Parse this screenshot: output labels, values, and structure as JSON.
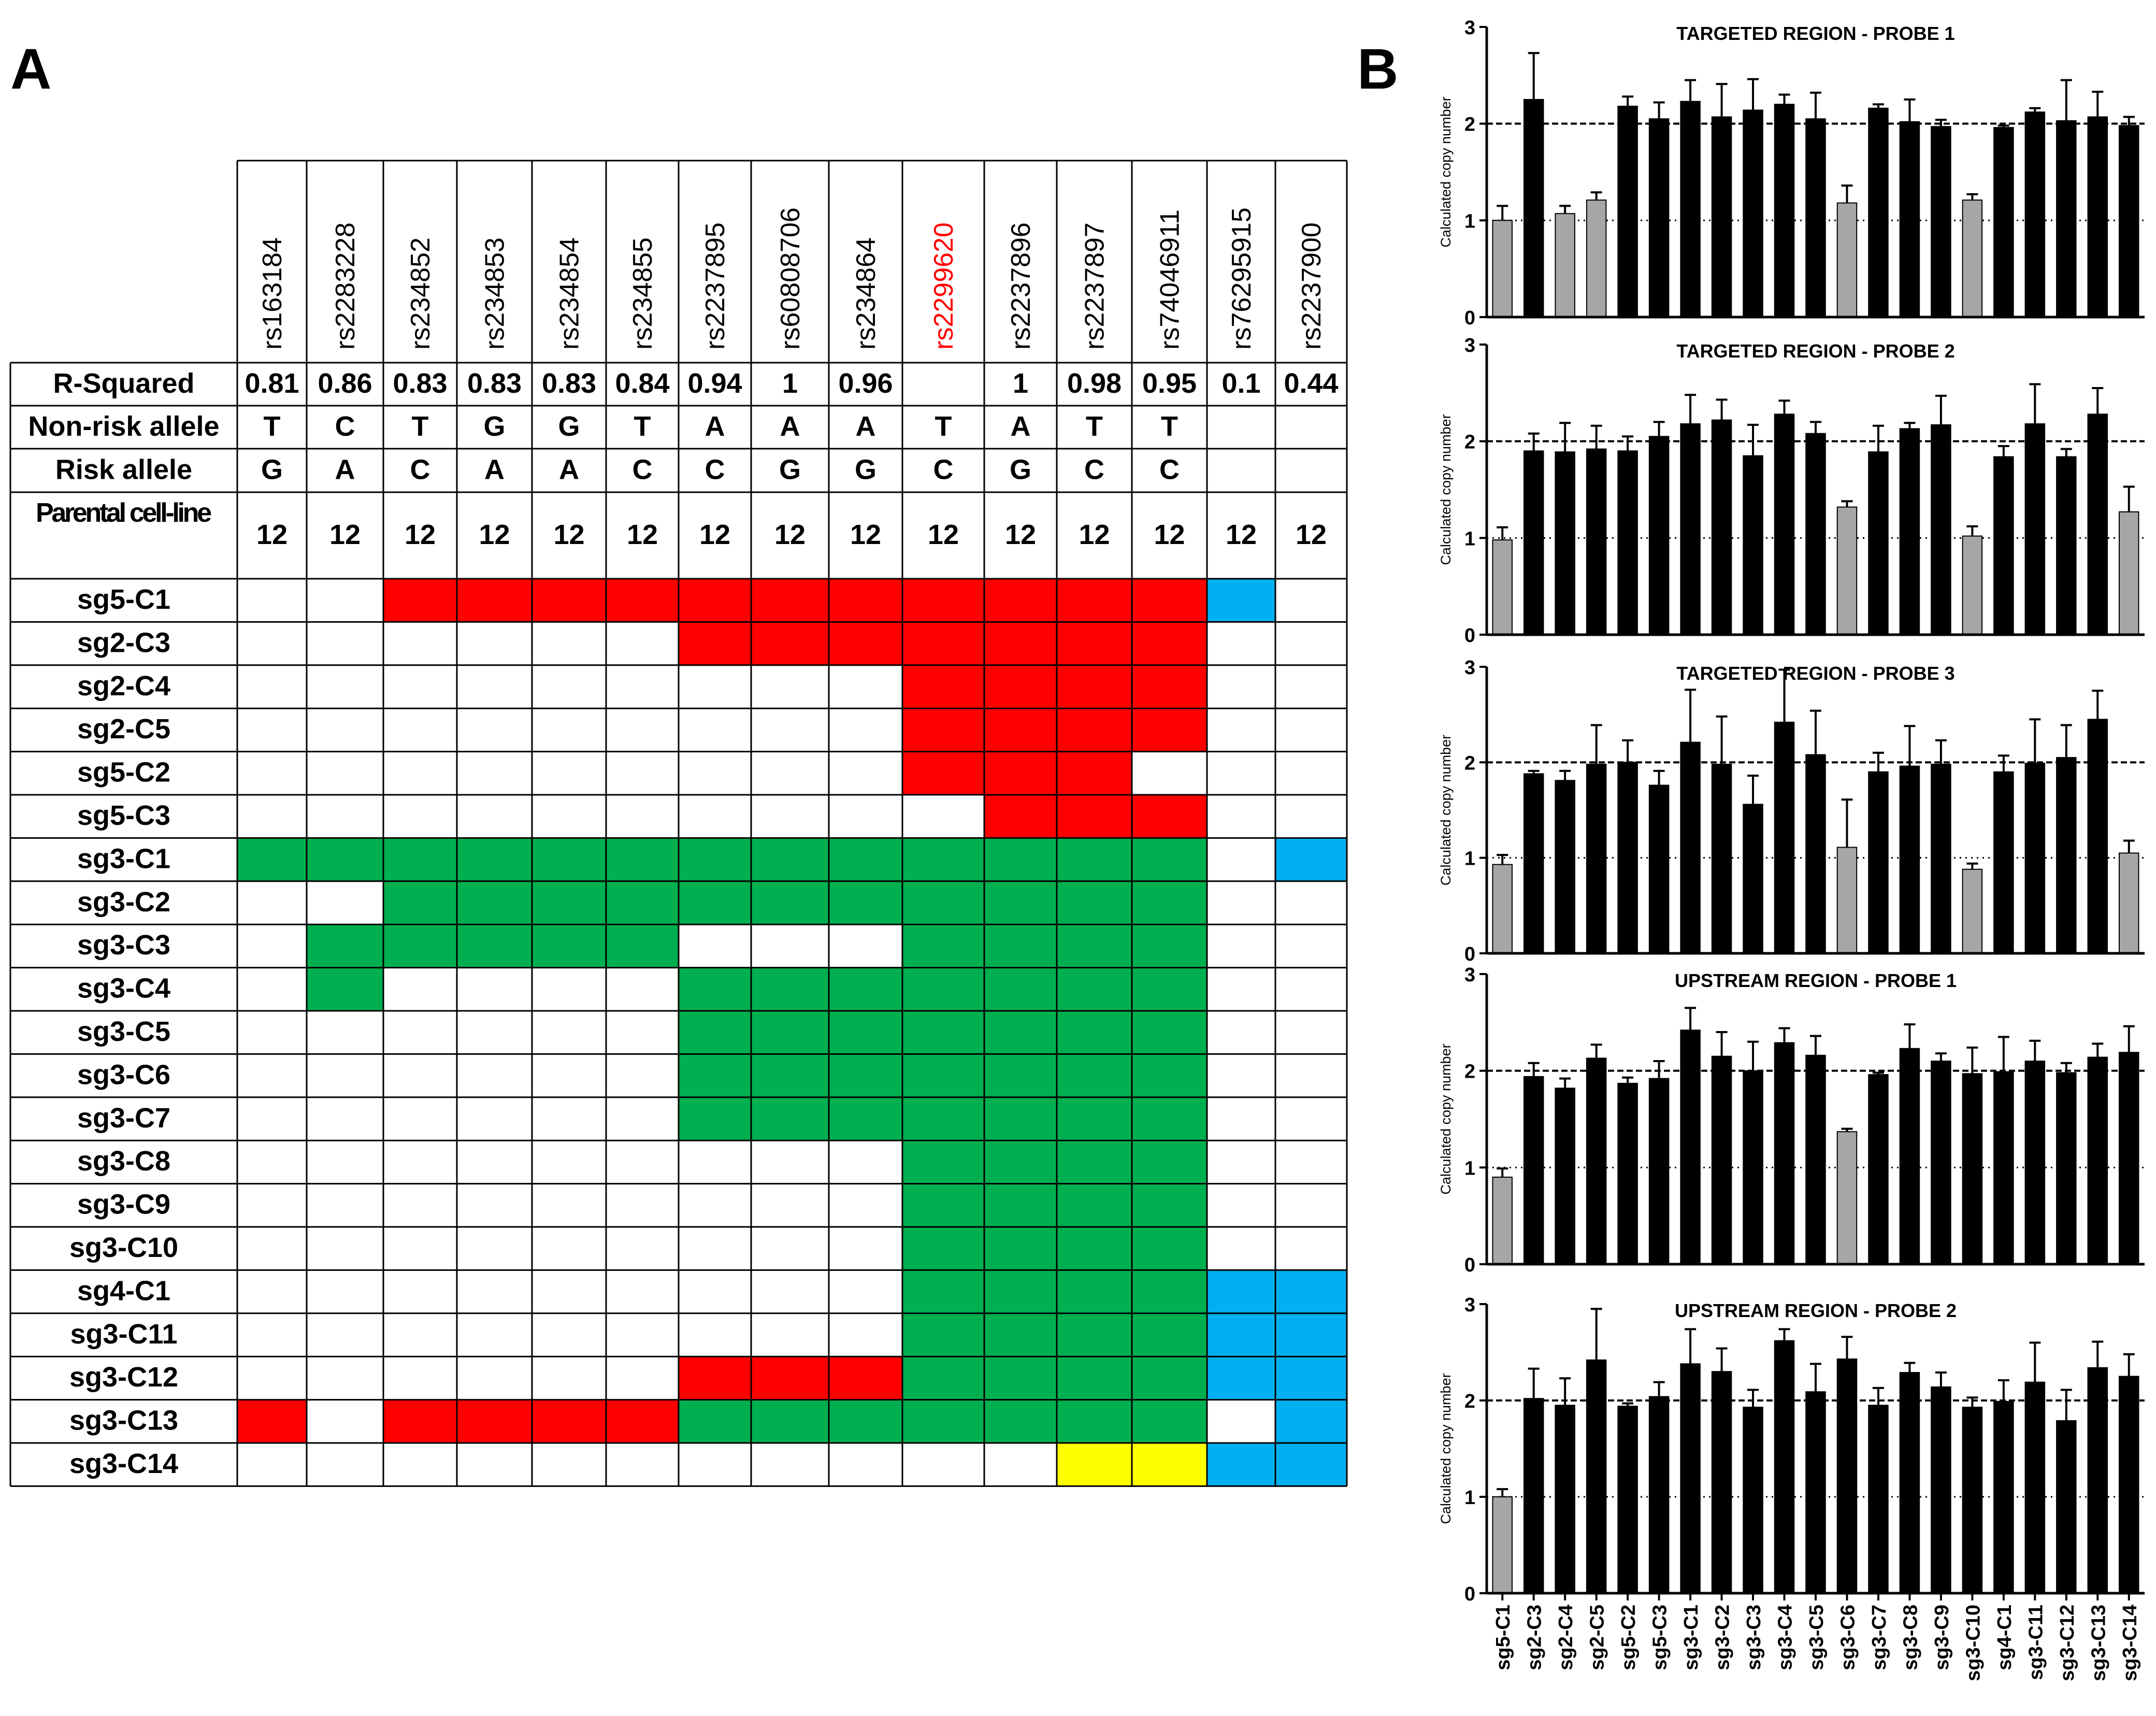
{
  "panels": {
    "a": "A",
    "b": "B"
  },
  "table": {
    "snps": [
      "rs163184",
      "rs2283228",
      "rs234852",
      "rs234853",
      "rs234854",
      "rs234855",
      "rs2237895",
      "rs60808706",
      "rs234864",
      "rs2299620",
      "rs2237896",
      "rs2237897",
      "rs74046911",
      "rs76295915",
      "rs2237900"
    ],
    "highlight_snp": "rs2299620",
    "highlight_color": "#ff0000",
    "info_rows": [
      {
        "label": "R-Squared",
        "values": [
          "0.81",
          "0.86",
          "0.83",
          "0.83",
          "0.83",
          "0.84",
          "0.94",
          "1",
          "0.96",
          "",
          "1",
          "0.98",
          "0.95",
          "0.1",
          "0.44"
        ]
      },
      {
        "label": "Non-risk allele",
        "values": [
          "T",
          "C",
          "T",
          "G",
          "G",
          "T",
          "A",
          "A",
          "A",
          "T",
          "A",
          "T",
          "T",
          "",
          ""
        ]
      },
      {
        "label": "Risk allele",
        "values": [
          "G",
          "A",
          "C",
          "A",
          "A",
          "C",
          "C",
          "G",
          "G",
          "C",
          "G",
          "C",
          "C",
          "",
          ""
        ]
      },
      {
        "label": "Parental cell-line",
        "values": [
          "12",
          "12",
          "12",
          "12",
          "12",
          "12",
          "12",
          "12",
          "12",
          "12",
          "12",
          "12",
          "12",
          "12",
          "12"
        ]
      }
    ],
    "color_key": {
      "R": "#ff0000",
      "G": "#00b050",
      "B": "#00b0f0",
      "Y": "#ffff00",
      "W": "#ffffff"
    },
    "clones": [
      {
        "label": "sg5-C1",
        "cells": "WWRRRRRRRRRRRBW"
      },
      {
        "label": "sg2-C3",
        "cells": "WWWWWWRRRRRRRWW"
      },
      {
        "label": "sg2-C4",
        "cells": "WWWWWWWWWRRRRWW"
      },
      {
        "label": "sg2-C5",
        "cells": "WWWWWWWWWRRRRWW"
      },
      {
        "label": "sg5-C2",
        "cells": "WWWWWWWWWRRRWWW"
      },
      {
        "label": "sg5-C3",
        "cells": "WWWWWWWWWWRRRWW"
      },
      {
        "label": "sg3-C1",
        "cells": "GGGGGGGGGGGGGWB"
      },
      {
        "label": "sg3-C2",
        "cells": "WWGGGGGGGGGGGWW"
      },
      {
        "label": "sg3-C3",
        "cells": "WGGGGGWWWGGGGWW"
      },
      {
        "label": "sg3-C4",
        "cells": "WGWWWWGGGGGGGWW"
      },
      {
        "label": "sg3-C5",
        "cells": "WWWWWWGGGGGGGWW"
      },
      {
        "label": "sg3-C6",
        "cells": "WWWWWWGGGGGGGWW"
      },
      {
        "label": "sg3-C7",
        "cells": "WWWWWWGGGGGGGWW"
      },
      {
        "label": "sg3-C8",
        "cells": "WWWWWWWWWGGGGWW"
      },
      {
        "label": "sg3-C9",
        "cells": "WWWWWWWWWGGGGWW"
      },
      {
        "label": "sg3-C10",
        "cells": "WWWWWWWWWGGGGWW"
      },
      {
        "label": "sg4-C1",
        "cells": "WWWWWWWWWGGGGBB"
      },
      {
        "label": "sg3-C11",
        "cells": "WWWWWWWWWGGGGBB"
      },
      {
        "label": "sg3-C12",
        "cells": "WWWWWWRRRGGGGBB"
      },
      {
        "label": "sg3-C13",
        "cells": "RWRRRRGGGGGGGWB"
      },
      {
        "label": "sg3-C14",
        "cells": "WWWWWWWWWWWYYBB"
      }
    ]
  },
  "chart_data": [
    {
      "type": "bar",
      "title": "TARGETED REGION - PROBE 1",
      "ylabel": "Calculated copy number",
      "ylim": [
        0,
        3
      ],
      "yticks": [
        0,
        1,
        2,
        3
      ],
      "reference_lines": [
        {
          "y": 1,
          "style": "dotted"
        },
        {
          "y": 2,
          "style": "dashed"
        }
      ],
      "categories": [
        "sg5-C1",
        "sg2-C3",
        "sg2-C4",
        "sg2-C5",
        "sg5-C2",
        "sg5-C3",
        "sg3-C1",
        "sg3-C2",
        "sg3-C3",
        "sg3-C4",
        "sg3-C5",
        "sg3-C6",
        "sg3-C7",
        "sg3-C8",
        "sg3-C9",
        "sg3-C10",
        "sg4-C1",
        "sg3-C11",
        "sg3-C12",
        "sg3-C13",
        "sg3-C14"
      ],
      "values": [
        1.0,
        2.25,
        1.07,
        1.21,
        2.18,
        2.05,
        2.23,
        2.07,
        2.14,
        2.2,
        2.05,
        1.18,
        2.16,
        2.02,
        1.97,
        1.21,
        1.96,
        2.12,
        2.03,
        2.07,
        1.98
      ],
      "errors": [
        0.15,
        0.48,
        0.08,
        0.08,
        0.1,
        0.17,
        0.22,
        0.34,
        0.32,
        0.1,
        0.27,
        0.18,
        0.04,
        0.23,
        0.07,
        0.06,
        0.02,
        0.04,
        0.42,
        0.26,
        0.09
      ],
      "colors": [
        "#a6a6a6",
        "#000000",
        "#a6a6a6",
        "#a6a6a6",
        "#000000",
        "#000000",
        "#000000",
        "#000000",
        "#000000",
        "#000000",
        "#000000",
        "#a6a6a6",
        "#000000",
        "#000000",
        "#000000",
        "#a6a6a6",
        "#000000",
        "#000000",
        "#000000",
        "#000000",
        "#000000"
      ]
    },
    {
      "type": "bar",
      "title": "TARGETED REGION - PROBE 2",
      "ylabel": "Calculated copy number",
      "ylim": [
        0,
        3
      ],
      "yticks": [
        0,
        1,
        2,
        3
      ],
      "reference_lines": [
        {
          "y": 1,
          "style": "dotted"
        },
        {
          "y": 2,
          "style": "dashed"
        }
      ],
      "categories": [
        "sg5-C1",
        "sg2-C3",
        "sg2-C4",
        "sg2-C5",
        "sg5-C2",
        "sg5-C3",
        "sg3-C1",
        "sg3-C2",
        "sg3-C3",
        "sg3-C4",
        "sg3-C5",
        "sg3-C6",
        "sg3-C7",
        "sg3-C8",
        "sg3-C9",
        "sg3-C10",
        "sg4-C1",
        "sg3-C11",
        "sg3-C12",
        "sg3-C13",
        "sg3-C14"
      ],
      "values": [
        0.98,
        1.9,
        1.89,
        1.92,
        1.9,
        2.05,
        2.18,
        2.22,
        1.85,
        2.28,
        2.08,
        1.32,
        1.89,
        2.13,
        2.17,
        1.02,
        1.84,
        2.18,
        1.84,
        2.28,
        1.27
      ],
      "errors": [
        0.13,
        0.18,
        0.3,
        0.24,
        0.15,
        0.15,
        0.3,
        0.21,
        0.32,
        0.14,
        0.12,
        0.06,
        0.27,
        0.06,
        0.3,
        0.1,
        0.11,
        0.41,
        0.08,
        0.27,
        0.26
      ],
      "colors": [
        "#a6a6a6",
        "#000000",
        "#000000",
        "#000000",
        "#000000",
        "#000000",
        "#000000",
        "#000000",
        "#000000",
        "#000000",
        "#000000",
        "#a6a6a6",
        "#000000",
        "#000000",
        "#000000",
        "#a6a6a6",
        "#000000",
        "#000000",
        "#000000",
        "#000000",
        "#a6a6a6"
      ]
    },
    {
      "type": "bar",
      "title": "TARGETED REGION - PROBE 3",
      "ylabel": "Calculated copy number",
      "ylim": [
        0,
        3
      ],
      "yticks": [
        0,
        1,
        2,
        3
      ],
      "reference_lines": [
        {
          "y": 1,
          "style": "dotted"
        },
        {
          "y": 2,
          "style": "dashed"
        }
      ],
      "categories": [
        "sg5-C1",
        "sg2-C3",
        "sg2-C4",
        "sg2-C5",
        "sg5-C2",
        "sg5-C3",
        "sg3-C1",
        "sg3-C2",
        "sg3-C3",
        "sg3-C4",
        "sg3-C5",
        "sg3-C6",
        "sg3-C7",
        "sg3-C8",
        "sg3-C9",
        "sg3-C10",
        "sg4-C1",
        "sg3-C11",
        "sg3-C12",
        "sg3-C13",
        "sg3-C14"
      ],
      "values": [
        0.93,
        1.88,
        1.81,
        1.98,
        2.0,
        1.76,
        2.21,
        1.98,
        1.56,
        2.42,
        2.08,
        1.11,
        1.9,
        1.96,
        1.98,
        0.88,
        1.9,
        1.99,
        2.05,
        2.45,
        1.05
      ],
      "errors": [
        0.1,
        0.03,
        0.1,
        0.41,
        0.23,
        0.15,
        0.55,
        0.5,
        0.3,
        0.55,
        0.46,
        0.5,
        0.2,
        0.42,
        0.25,
        0.06,
        0.17,
        0.46,
        0.34,
        0.3,
        0.13
      ],
      "colors": [
        "#a6a6a6",
        "#000000",
        "#000000",
        "#000000",
        "#000000",
        "#000000",
        "#000000",
        "#000000",
        "#000000",
        "#000000",
        "#000000",
        "#a6a6a6",
        "#000000",
        "#000000",
        "#000000",
        "#a6a6a6",
        "#000000",
        "#000000",
        "#000000",
        "#000000",
        "#a6a6a6"
      ]
    },
    {
      "type": "bar",
      "title": "UPSTREAM REGION - PROBE 1",
      "ylabel": "Calculated copy number",
      "ylim": [
        0,
        3
      ],
      "yticks": [
        0,
        1,
        2,
        3
      ],
      "reference_lines": [
        {
          "y": 1,
          "style": "dotted"
        },
        {
          "y": 2,
          "style": "dashed"
        }
      ],
      "categories": [
        "sg5-C1",
        "sg2-C3",
        "sg2-C4",
        "sg2-C5",
        "sg5-C2",
        "sg5-C3",
        "sg3-C1",
        "sg3-C2",
        "sg3-C3",
        "sg3-C4",
        "sg3-C5",
        "sg3-C6",
        "sg3-C7",
        "sg3-C8",
        "sg3-C9",
        "sg3-C10",
        "sg4-C1",
        "sg3-C11",
        "sg3-C12",
        "sg3-C13",
        "sg3-C14"
      ],
      "values": [
        0.9,
        1.94,
        1.82,
        2.13,
        1.87,
        1.92,
        2.42,
        2.15,
        2.0,
        2.29,
        2.16,
        1.37,
        1.96,
        2.23,
        2.1,
        1.97,
        1.99,
        2.1,
        1.98,
        2.14,
        2.19
      ],
      "errors": [
        0.09,
        0.14,
        0.1,
        0.14,
        0.06,
        0.18,
        0.23,
        0.25,
        0.3,
        0.15,
        0.2,
        0.03,
        0.02,
        0.25,
        0.08,
        0.27,
        0.36,
        0.21,
        0.1,
        0.14,
        0.27
      ],
      "colors": [
        "#a6a6a6",
        "#000000",
        "#000000",
        "#000000",
        "#000000",
        "#000000",
        "#000000",
        "#000000",
        "#000000",
        "#000000",
        "#000000",
        "#a6a6a6",
        "#000000",
        "#000000",
        "#000000",
        "#000000",
        "#000000",
        "#000000",
        "#000000",
        "#000000",
        "#000000"
      ]
    },
    {
      "type": "bar",
      "title": "UPSTREAM REGION - PROBE 2",
      "ylabel": "Calculated copy number",
      "ylim": [
        0,
        3
      ],
      "yticks": [
        0,
        1,
        2,
        3
      ],
      "reference_lines": [
        {
          "y": 1,
          "style": "dotted"
        },
        {
          "y": 2,
          "style": "dashed"
        }
      ],
      "categories": [
        "sg5-C1",
        "sg2-C3",
        "sg2-C4",
        "sg2-C5",
        "sg5-C2",
        "sg5-C3",
        "sg3-C1",
        "sg3-C2",
        "sg3-C3",
        "sg3-C4",
        "sg3-C5",
        "sg3-C6",
        "sg3-C7",
        "sg3-C8",
        "sg3-C9",
        "sg3-C10",
        "sg4-C1",
        "sg3-C11",
        "sg3-C12",
        "sg3-C13",
        "sg3-C14"
      ],
      "values": [
        1.0,
        2.02,
        1.95,
        2.42,
        1.94,
        2.04,
        2.38,
        2.3,
        1.93,
        2.62,
        2.09,
        2.43,
        1.95,
        2.29,
        2.14,
        1.93,
        1.99,
        2.19,
        1.79,
        2.34,
        2.25
      ],
      "errors": [
        0.08,
        0.31,
        0.28,
        0.53,
        0.03,
        0.15,
        0.36,
        0.24,
        0.18,
        0.12,
        0.29,
        0.23,
        0.18,
        0.1,
        0.15,
        0.1,
        0.22,
        0.41,
        0.32,
        0.27,
        0.23
      ],
      "colors": [
        "#a6a6a6",
        "#000000",
        "#000000",
        "#000000",
        "#000000",
        "#000000",
        "#000000",
        "#000000",
        "#000000",
        "#000000",
        "#000000",
        "#000000",
        "#000000",
        "#000000",
        "#000000",
        "#000000",
        "#000000",
        "#000000",
        "#000000",
        "#000000",
        "#000000"
      ]
    }
  ]
}
